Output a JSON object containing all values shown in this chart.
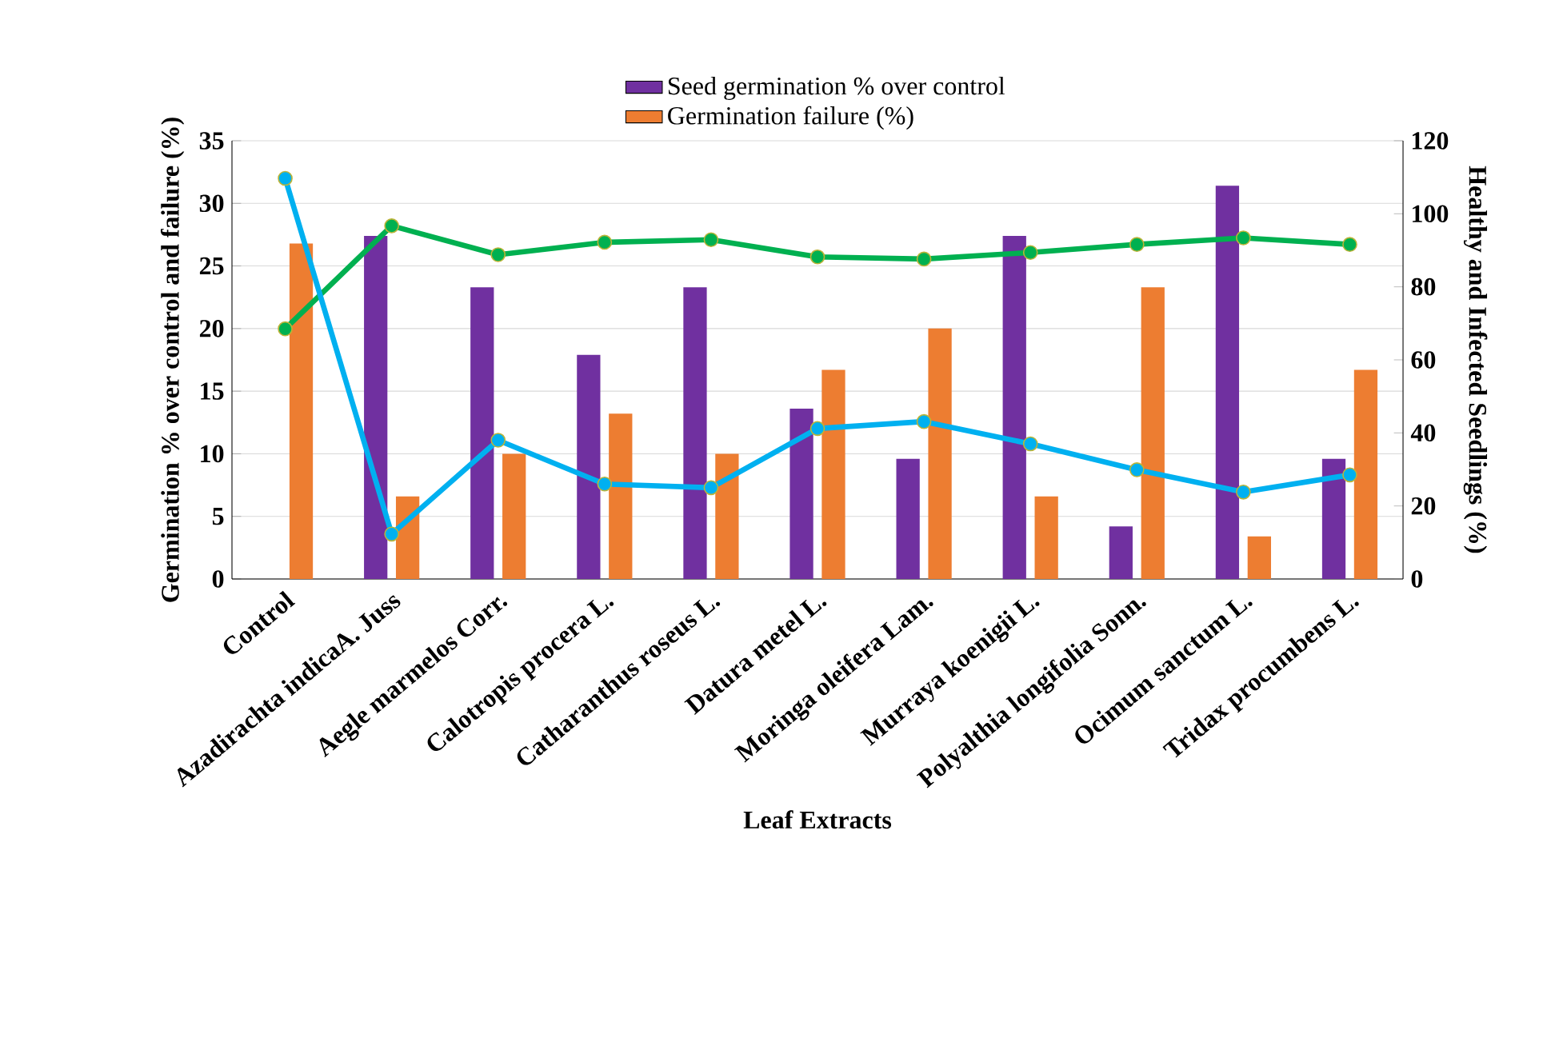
{
  "chart_data": {
    "type": "bar",
    "categories": [
      "Control",
      "Azadirachta indicaA. Juss",
      "Aegle marmelos Corr.",
      "Calotropis procera L.",
      "Catharanthus roseus L.",
      "Datura metel L.",
      "Moringa oleifera Lam.",
      "Murraya koenigii L.",
      "Polyalthia longifolia Sonn.",
      "Ocimum sanctum L.",
      "Tridax procumbens L."
    ],
    "series": [
      {
        "name": "Seed germination %    over control",
        "color": "#7030a0",
        "values": [
          null,
          27.4,
          23.3,
          17.9,
          23.3,
          13.6,
          9.6,
          27.4,
          4.2,
          31.4,
          9.6
        ]
      },
      {
        "name": "Germination failure (%)",
        "color": "#ed7d31",
        "values": [
          26.8,
          6.6,
          10.0,
          13.2,
          10.0,
          16.7,
          20.0,
          6.6,
          23.3,
          3.4,
          16.7
        ]
      },
      {
        "type": "line",
        "axis": "y2",
        "color": "#00b050",
        "marker": "circle",
        "values": [
          68.5,
          96.7,
          88.8,
          92.2,
          92.9,
          88.2,
          87.6,
          89.4,
          91.6,
          93.4,
          91.6
        ]
      },
      {
        "type": "line",
        "axis": "y2",
        "color": "#00b0f0",
        "marker": "circle",
        "values": [
          109.7,
          12.3,
          38.0,
          26.0,
          25.0,
          41.2,
          43.1,
          37.0,
          29.9,
          23.8,
          28.5
        ]
      }
    ],
    "xlabel": "Leaf Extracts",
    "ylabel": "Germination  % over control and failure (%)",
    "y2label": "Healthy  and Infected Seedlings (%)",
    "ylim": [
      0,
      35
    ],
    "yticks": [
      0,
      5,
      10,
      15,
      20,
      25,
      30,
      35
    ],
    "y2lim": [
      0,
      120
    ],
    "y2ticks": [
      0,
      20,
      40,
      60,
      80,
      100,
      120
    ],
    "grid": "y",
    "legend": "top"
  }
}
